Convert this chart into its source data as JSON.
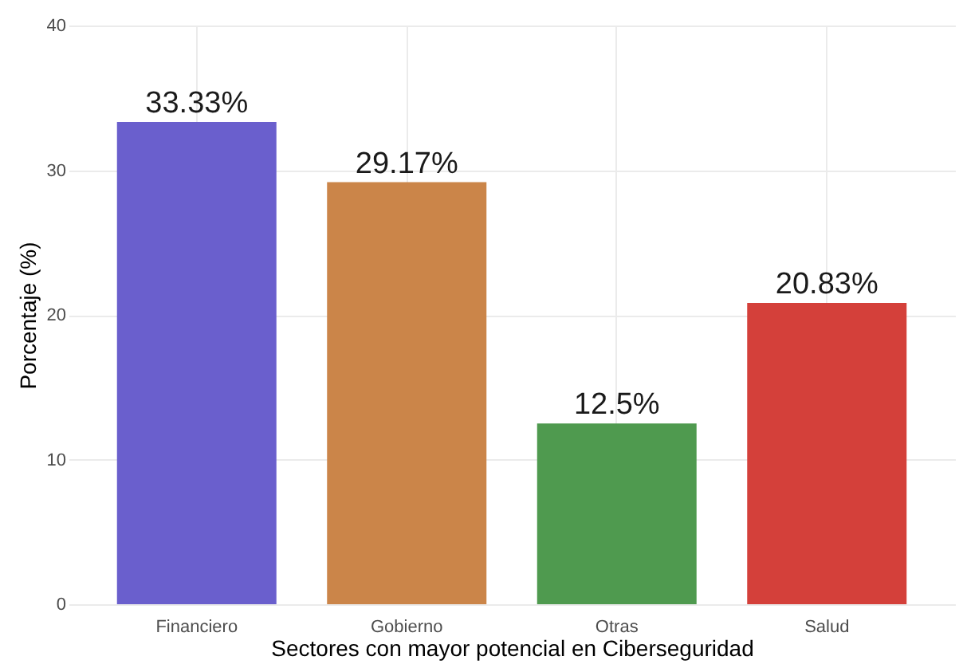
{
  "chart_data": {
    "type": "bar",
    "xlabel": "Sectores con mayor potencial en Ciberseguridad",
    "ylabel": "Porcentaje (%)",
    "categories": [
      "Financiero",
      "Gobierno",
      "Otras",
      "Salud"
    ],
    "values": [
      33.33,
      29.17,
      12.5,
      20.83
    ],
    "colors": [
      "#6a5fcd",
      "#cb8549",
      "#4f9a4f",
      "#d4403a"
    ],
    "value_labels": [
      "33.33%",
      "29.17%",
      "12.5%",
      "20.83%"
    ],
    "ylim": [
      0,
      40
    ],
    "yticks": [
      0,
      10,
      20,
      30,
      40
    ],
    "grid": true
  }
}
